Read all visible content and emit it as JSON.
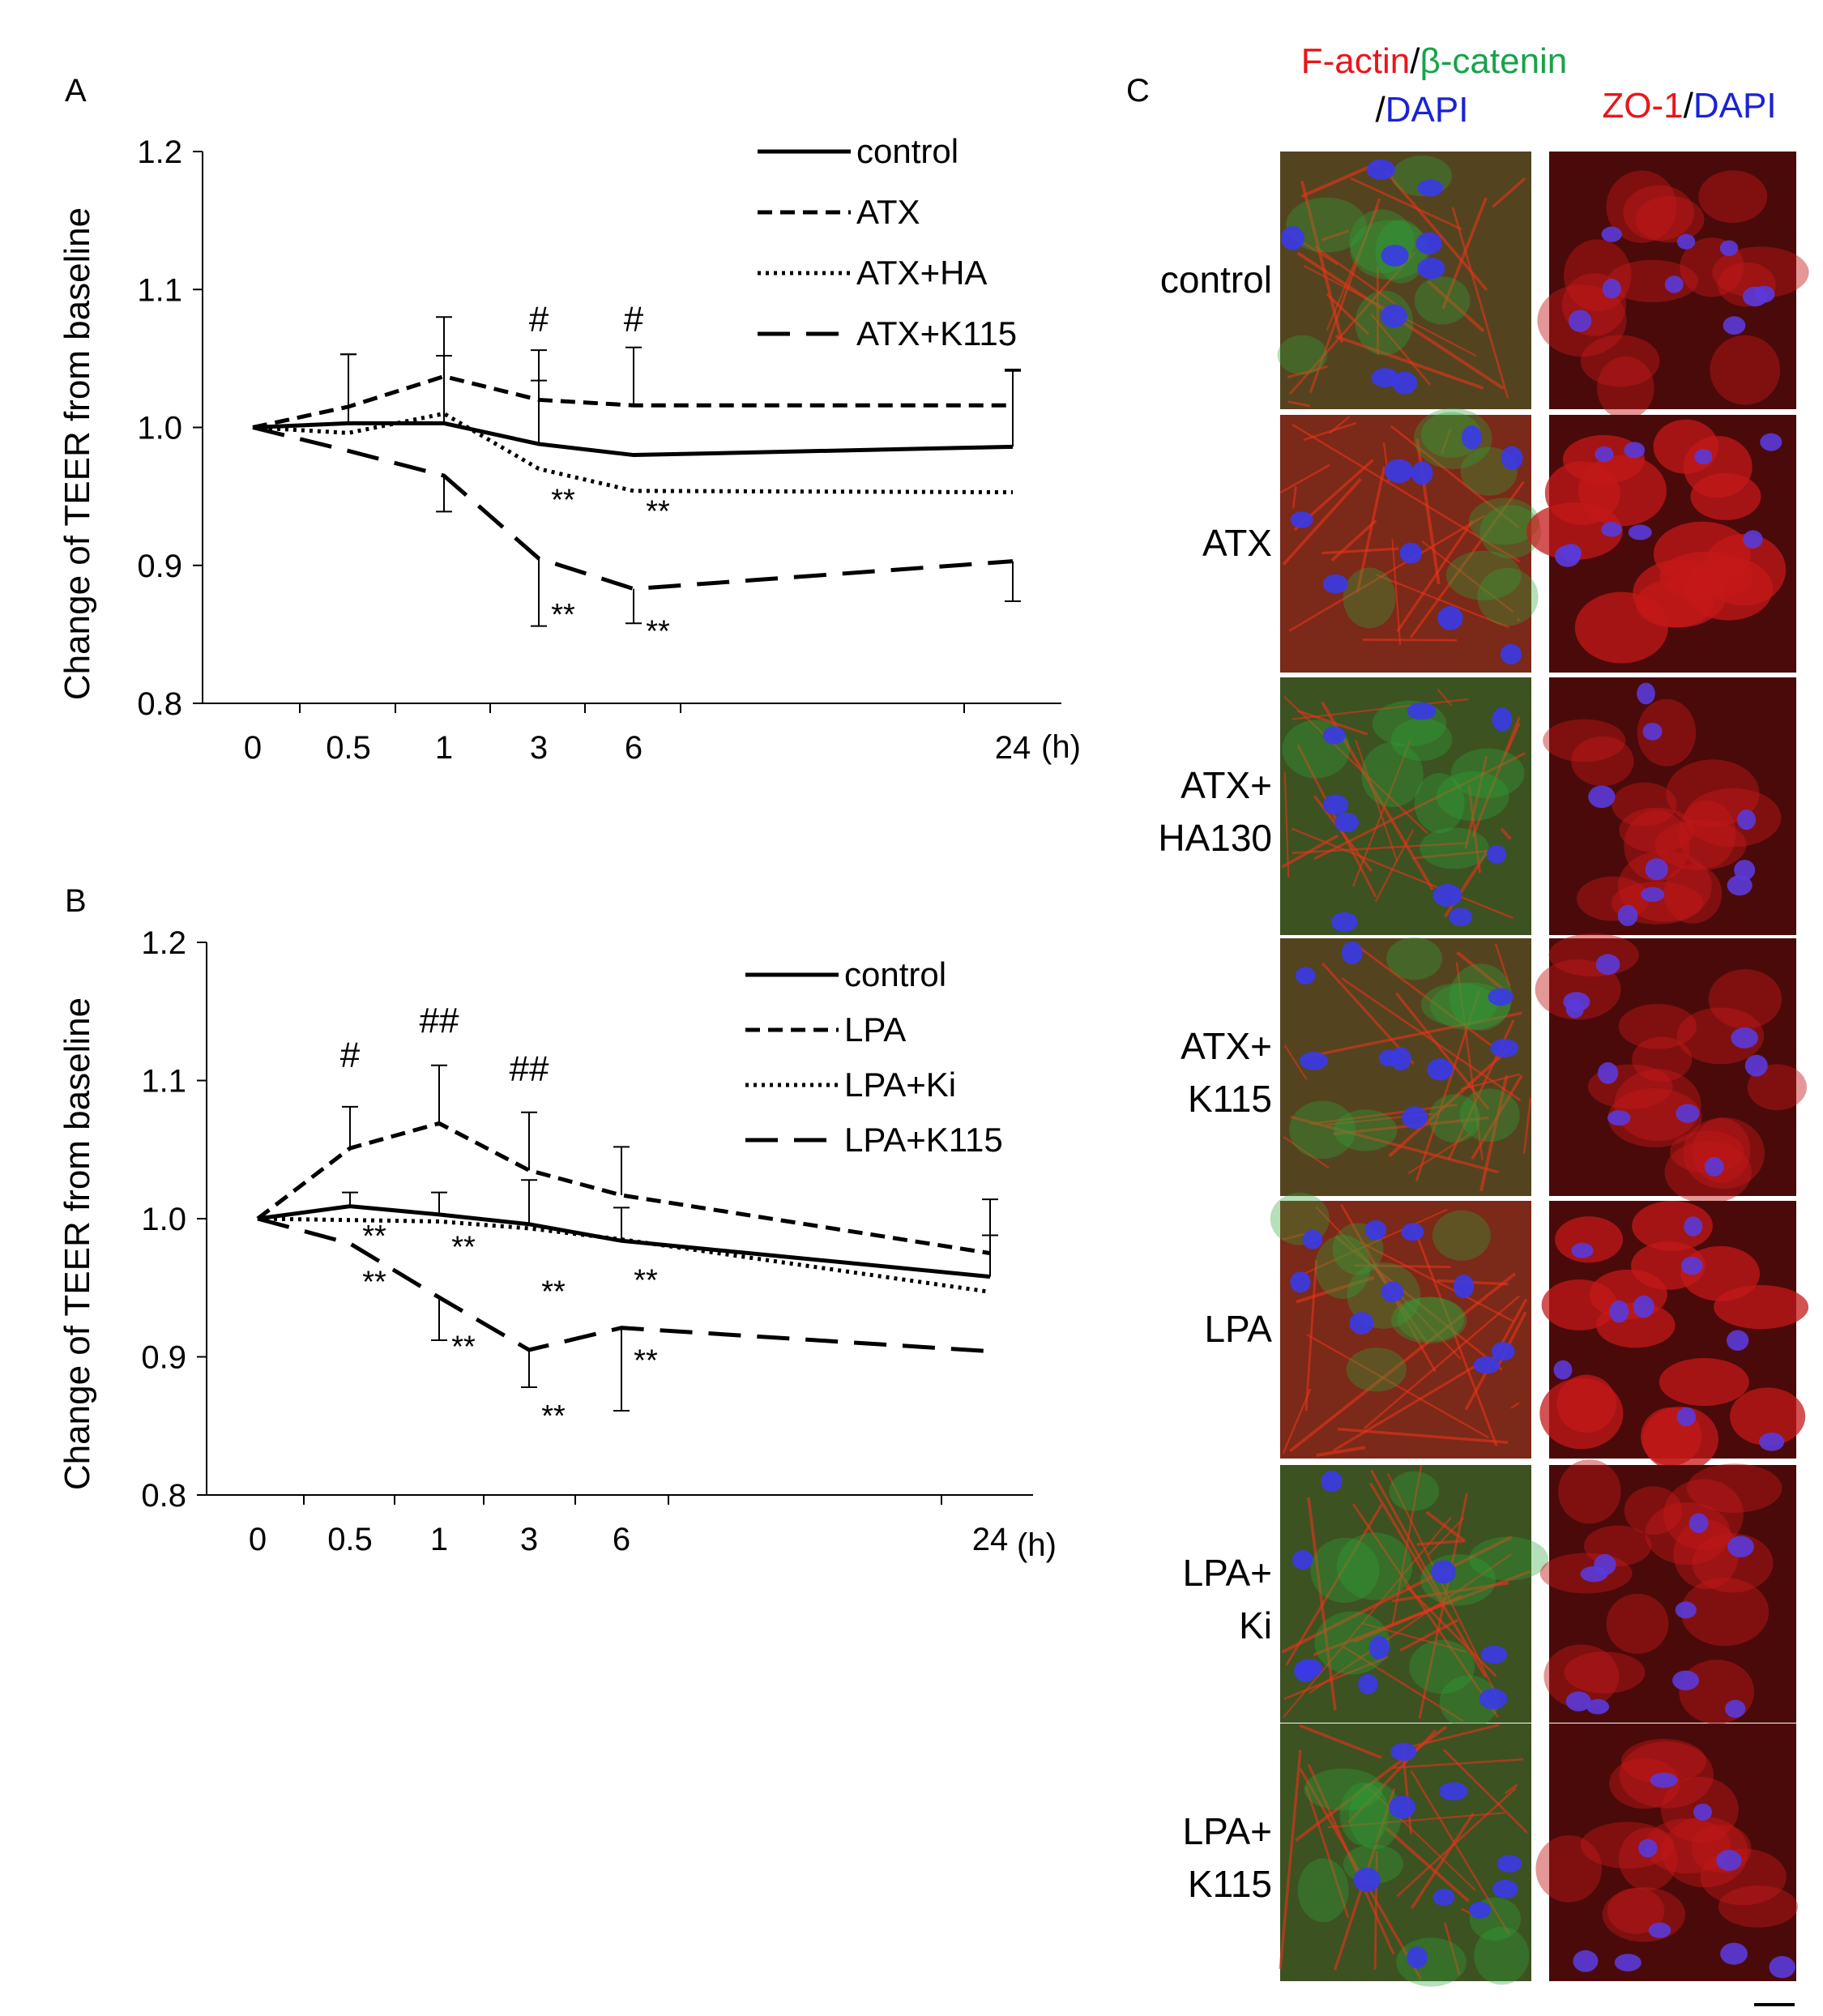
{
  "chart_data": [
    {
      "panel": "A",
      "type": "line",
      "ylabel": "Change of TEER from baseline",
      "xlabel": "",
      "x_unit": "(h)",
      "categories": [
        "0",
        "0.5",
        "1",
        "3",
        "6",
        "24"
      ],
      "ylim": [
        0.8,
        1.2
      ],
      "yticks": [
        "0.8",
        "0.9",
        "1.0",
        "1.1",
        "1.2"
      ],
      "legend_position": "top-right",
      "series": [
        {
          "name": "control",
          "style": "solid",
          "values": [
            1.0,
            1.003,
            1.003,
            0.988,
            0.98,
            0.986
          ],
          "err": [
            0,
            0.05,
            0.049,
            0.046,
            0,
            0.056
          ]
        },
        {
          "name": "ATX",
          "style": "short-dash",
          "values": [
            1.0,
            1.015,
            1.037,
            1.02,
            1.016,
            1.016
          ],
          "err": [
            0,
            0.038,
            0.043,
            0.036,
            0.042,
            0.025
          ]
        },
        {
          "name": "ATX+HA",
          "style": "dotted",
          "values": [
            1.0,
            0.996,
            1.01,
            0.97,
            0.954,
            0.953
          ],
          "err": [
            0,
            0,
            0,
            0,
            0,
            0
          ]
        },
        {
          "name": "ATX+K115",
          "style": "long-dash",
          "values": [
            1.0,
            0.983,
            0.965,
            0.905,
            0.883,
            0.903
          ],
          "err": [
            0,
            0,
            0.026,
            0.049,
            0.025,
            0.029
          ]
        }
      ],
      "annotations": [
        {
          "text": "#",
          "x": "3",
          "y": 1.07
        },
        {
          "text": "#",
          "x": "6",
          "y": 1.07
        },
        {
          "text": "**",
          "x": "3",
          "y": 0.94
        },
        {
          "text": "**",
          "x": "6",
          "y": 0.932
        },
        {
          "text": "**",
          "x": "3",
          "y": 0.857
        },
        {
          "text": "**",
          "x": "6",
          "y": 0.845
        }
      ]
    },
    {
      "panel": "B",
      "type": "line",
      "ylabel": "Change of TEER from baseline",
      "xlabel": "",
      "x_unit": "(h)",
      "categories": [
        "0",
        "0.5",
        "1",
        "3",
        "6",
        "24"
      ],
      "ylim": [
        0.8,
        1.2
      ],
      "yticks": [
        "0.8",
        "0.9",
        "1.0",
        "1.1",
        "1.2"
      ],
      "legend_position": "top-right",
      "series": [
        {
          "name": "control",
          "style": "solid",
          "values": [
            1.0,
            1.009,
            1.003,
            0.996,
            0.984,
            0.958
          ],
          "err": [
            0,
            0.01,
            0.016,
            0.032,
            0.024,
            0.03
          ]
        },
        {
          "name": "LPA",
          "style": "short-dash",
          "values": [
            1.0,
            1.051,
            1.069,
            1.035,
            1.017,
            0.975
          ],
          "err": [
            0,
            0.03,
            0.042,
            0.042,
            0.035,
            0.039
          ]
        },
        {
          "name": "LPA+Ki",
          "style": "dotted",
          "values": [
            1.0,
            0.999,
            0.998,
            0.993,
            0.985,
            0.947
          ],
          "err": [
            0,
            0,
            0,
            0,
            0,
            0
          ]
        },
        {
          "name": "LPA+K115",
          "style": "long-dash",
          "values": [
            1.0,
            0.982,
            0.943,
            0.905,
            0.921,
            0.904
          ],
          "err": [
            0,
            0,
            0.031,
            0.027,
            0.06,
            0
          ]
        }
      ],
      "annotations": [
        {
          "text": "#",
          "x": "0.5",
          "y": 1.11
        },
        {
          "text": "##",
          "x": "1",
          "y": 1.135
        },
        {
          "text": "##",
          "x": "3",
          "y": 1.1
        },
        {
          "text": "**",
          "x": "0.5",
          "y": 0.98
        },
        {
          "text": "**",
          "x": "1",
          "y": 0.972
        },
        {
          "text": "**",
          "x": "0.5",
          "y": 0.947
        },
        {
          "text": "**",
          "x": "1",
          "y": 0.9
        },
        {
          "text": "**",
          "x": "3",
          "y": 0.94
        },
        {
          "text": "**",
          "x": "6",
          "y": 0.948
        },
        {
          "text": "**",
          "x": "6",
          "y": 0.89
        },
        {
          "text": "**",
          "x": "3",
          "y": 0.85
        }
      ]
    }
  ],
  "panel_labels": {
    "a": "A",
    "b": "B",
    "c": "C"
  },
  "panel_c": {
    "col1_header": {
      "part1": "F-actin",
      "sep1": "/",
      "part2": "β-catenin",
      "line2_sep": "/",
      "part3": "DAPI"
    },
    "col2_header": {
      "part1": "ZO-1",
      "sep1": "/",
      "part2": "DAPI"
    },
    "rows": [
      {
        "line1": "control",
        "line2": ""
      },
      {
        "line1": "ATX",
        "line2": ""
      },
      {
        "line1": "ATX+",
        "line2": "HA130"
      },
      {
        "line1": "ATX+",
        "line2": "K115"
      },
      {
        "line1": "LPA",
        "line2": ""
      },
      {
        "line1": "LPA+",
        "line2": "Ki"
      },
      {
        "line1": "LPA+",
        "line2": "K115"
      }
    ],
    "colors": {
      "red": "#e8161b",
      "green": "#17a34a",
      "blue": "#1a22d6"
    }
  }
}
